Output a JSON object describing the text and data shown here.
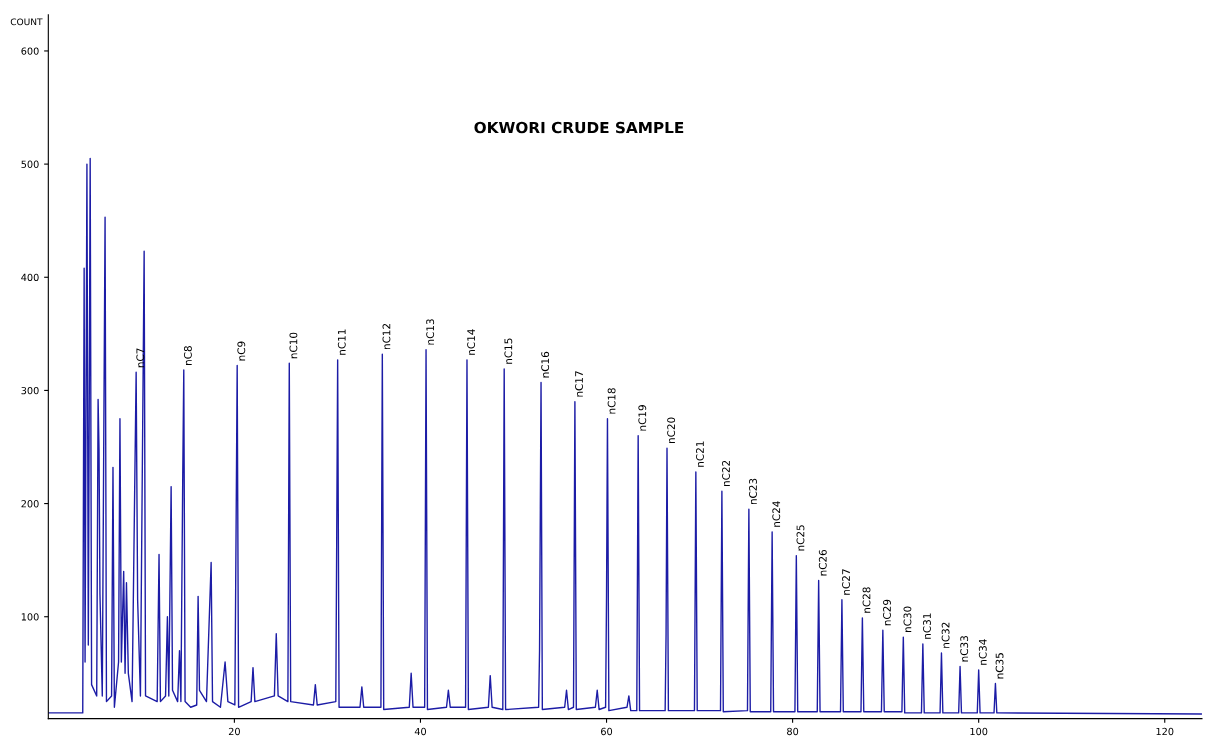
{
  "chart_data": {
    "type": "line",
    "title": "OKWORI CRUDE SAMPLE",
    "ylabel": "COUNT",
    "series": [
      {
        "color": "#1c1ca6",
        "x": [
          0,
          3.7,
          3.85,
          3.95,
          4.15,
          4.3,
          4.5,
          4.65,
          5.2,
          5.35,
          5.45,
          5.55,
          5.8,
          6.1,
          6.25,
          6.8,
          6.95,
          7.1,
          7.55,
          7.7,
          7.85,
          8.1,
          8.25,
          8.4,
          8.6,
          9.0,
          9.44,
          9.6,
          9.9,
          10.3,
          10.45,
          11.7,
          11.9,
          12.05,
          12.6,
          12.8,
          12.95,
          13.2,
          13.35,
          13.9,
          14.1,
          14.25,
          14.45,
          14.56,
          14.7,
          15.3,
          15.95,
          16.1,
          16.25,
          17.0,
          17.5,
          17.65,
          18.5,
          19.0,
          19.3,
          20.05,
          20.2,
          20.3,
          20.45,
          21.8,
          22.0,
          22.2,
          24.3,
          24.5,
          24.7,
          25.75,
          25.9,
          26.05,
          28.5,
          28.7,
          28.9,
          30.9,
          31.0,
          31.1,
          31.25,
          33.5,
          33.7,
          33.9,
          35.75,
          35.9,
          36.05,
          38.8,
          39.0,
          39.2,
          40.45,
          40.6,
          40.75,
          42.8,
          43.0,
          43.2,
          44.85,
          45.0,
          45.15,
          47.3,
          47.5,
          47.7,
          48.85,
          49.0,
          49.15,
          52.7,
          52.8,
          52.96,
          53.1,
          55.5,
          55.7,
          55.9,
          56.45,
          56.6,
          56.75,
          58.8,
          59.0,
          59.2,
          59.9,
          60.0,
          60.1,
          60.25,
          62.2,
          62.4,
          62.6,
          63.25,
          63.4,
          63.55,
          66.3,
          66.4,
          66.5,
          66.65,
          69.45,
          69.6,
          69.75,
          72.25,
          72.4,
          72.55,
          75.15,
          75.3,
          75.45,
          77.65,
          77.8,
          77.95,
          80.25,
          80.4,
          80.55,
          82.65,
          82.8,
          82.95,
          85.15,
          85.3,
          85.45,
          87.35,
          87.5,
          87.65,
          89.55,
          89.7,
          89.85,
          91.75,
          91.9,
          92.05,
          93.85,
          94.0,
          94.15,
          95.85,
          96.0,
          96.15,
          97.85,
          98.0,
          98.15,
          99.85,
          100.0,
          100.15,
          101.65,
          101.8,
          101.95,
          124
        ],
        "values": [
          15,
          15,
          408,
          60,
          500,
          75,
          505,
          40,
          30,
          292,
          248,
          120,
          30,
          453,
          25,
          30,
          232,
          20,
          60,
          275,
          60,
          140,
          50,
          130,
          50,
          25,
          316,
          115,
          30,
          423,
          30,
          25,
          155,
          25,
          30,
          100,
          30,
          215,
          35,
          25,
          70,
          25,
          225,
          318,
          25,
          20,
          22,
          118,
          35,
          25,
          148,
          25,
          20,
          60,
          25,
          22,
          199,
          322,
          20,
          25,
          55,
          25,
          30,
          85,
          30,
          25,
          324,
          25,
          22,
          40,
          22,
          25,
          172,
          327,
          20,
          20,
          38,
          20,
          20,
          332,
          18,
          20,
          50,
          20,
          20,
          336,
          18,
          20,
          35,
          20,
          20,
          327,
          18,
          20,
          48,
          20,
          18,
          319,
          18,
          20,
          70,
          307,
          18,
          20,
          35,
          18,
          20,
          290,
          18,
          20,
          35,
          18,
          20,
          118,
          275,
          17,
          20,
          30,
          17,
          17,
          260,
          17,
          17,
          85,
          249,
          17,
          17,
          228,
          17,
          17,
          211,
          16,
          17,
          195,
          16,
          16,
          175,
          16,
          16,
          154,
          16,
          16,
          132,
          16,
          16,
          115,
          16,
          16,
          99,
          16,
          16,
          88,
          16,
          16,
          82,
          15,
          15,
          76,
          15,
          15,
          68,
          15,
          15,
          56,
          15,
          15,
          53,
          15,
          15,
          41,
          15,
          14
        ]
      }
    ],
    "annotations": [
      {
        "text": "nC7",
        "x": 9.44,
        "y": 316
      },
      {
        "text": "nC8",
        "x": 14.56,
        "y": 318
      },
      {
        "text": "nC9",
        "x": 20.3,
        "y": 322
      },
      {
        "text": "nC10",
        "x": 25.9,
        "y": 324
      },
      {
        "text": "nC11",
        "x": 31.1,
        "y": 327
      },
      {
        "text": "nC12",
        "x": 35.9,
        "y": 332
      },
      {
        "text": "nC13",
        "x": 40.6,
        "y": 336
      },
      {
        "text": "nC14",
        "x": 45.0,
        "y": 327
      },
      {
        "text": "nC15",
        "x": 49.0,
        "y": 319
      },
      {
        "text": "nC16",
        "x": 52.96,
        "y": 307
      },
      {
        "text": "nC17",
        "x": 56.6,
        "y": 290
      },
      {
        "text": "nC18",
        "x": 60.1,
        "y": 275
      },
      {
        "text": "nC19",
        "x": 63.4,
        "y": 260
      },
      {
        "text": "nC20",
        "x": 66.5,
        "y": 249
      },
      {
        "text": "nC21",
        "x": 69.6,
        "y": 228
      },
      {
        "text": "nC22",
        "x": 72.4,
        "y": 211
      },
      {
        "text": "nC23",
        "x": 75.3,
        "y": 195
      },
      {
        "text": "nC24",
        "x": 77.8,
        "y": 175
      },
      {
        "text": "nC25",
        "x": 80.4,
        "y": 154
      },
      {
        "text": "nC26",
        "x": 82.8,
        "y": 132
      },
      {
        "text": "nC27",
        "x": 85.3,
        "y": 115
      },
      {
        "text": "nC28",
        "x": 87.5,
        "y": 99
      },
      {
        "text": "nC29",
        "x": 89.7,
        "y": 88
      },
      {
        "text": "nC30",
        "x": 91.9,
        "y": 82
      },
      {
        "text": "nC31",
        "x": 94.0,
        "y": 76
      },
      {
        "text": "nC32",
        "x": 96.0,
        "y": 68
      },
      {
        "text": "nC33",
        "x": 98.0,
        "y": 56
      },
      {
        "text": "nC34",
        "x": 100.0,
        "y": 53
      },
      {
        "text": "nC35",
        "x": 101.8,
        "y": 41
      }
    ],
    "xlim": [
      0,
      124
    ],
    "ylim": [
      10,
      632
    ],
    "xticks": [
      20,
      40,
      60,
      80,
      100,
      120
    ],
    "yticks": [
      100,
      200,
      300,
      400,
      500,
      600
    ],
    "grid": false,
    "marker": "none",
    "line_style": "solid"
  }
}
